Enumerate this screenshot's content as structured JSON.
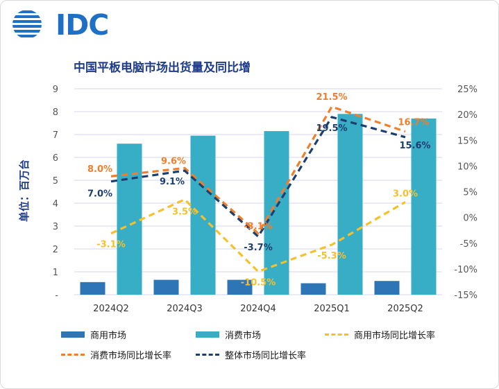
{
  "brand": {
    "logo_text": "IDC",
    "logo_color": "#1f6fc5"
  },
  "chart_data": {
    "type": "bar",
    "title": "中国平板电脑市场出货量及同比增",
    "ylabel": "单位：百万台",
    "categories": [
      "2024Q2",
      "2024Q3",
      "2024Q4",
      "2025Q1",
      "2025Q2"
    ],
    "ylim": [
      0,
      9
    ],
    "y_ticks": [
      "-",
      "1",
      "2",
      "3",
      "4",
      "5",
      "6",
      "7",
      "8",
      "9"
    ],
    "y2lim": [
      -15,
      25
    ],
    "y2_ticks": [
      "-15%",
      "-10%",
      "-5%",
      "0%",
      "5%",
      "10%",
      "15%",
      "20%",
      "25%"
    ],
    "grid": true,
    "legend_position": "bottom",
    "series": [
      {
        "name": "商用市场",
        "kind": "bar",
        "color": "#2e75b6",
        "values": [
          0.55,
          0.65,
          0.65,
          0.5,
          0.6
        ]
      },
      {
        "name": "消费市场",
        "kind": "bar",
        "color": "#38aec6",
        "values": [
          6.6,
          6.95,
          7.15,
          7.9,
          7.7
        ]
      },
      {
        "name": "商用市场同比增长率",
        "kind": "line",
        "axis": "y2",
        "color": "#f4c02c",
        "values": [
          -3.1,
          3.5,
          -10.5,
          -5.3,
          3.0
        ],
        "labels": [
          "-3.1%",
          "3.5%",
          "-10.5%",
          "-5.3%",
          "3.0%"
        ]
      },
      {
        "name": "消费市场同比增长率",
        "kind": "line",
        "axis": "y2",
        "color": "#f07e2a",
        "values": [
          8.0,
          9.6,
          -3.1,
          21.5,
          16.7
        ],
        "labels": [
          "8.0%",
          "9.6%",
          "-3.1%",
          "21.5%",
          "16.7%"
        ]
      },
      {
        "name": "整体市场同比增长率",
        "kind": "line",
        "axis": "y2",
        "color": "#1d3f6e",
        "values": [
          7.0,
          9.1,
          -3.7,
          19.5,
          15.6
        ],
        "labels": [
          "7.0%",
          "9.1%",
          "-3.7%",
          "19.5%",
          "15.6%"
        ]
      }
    ]
  }
}
